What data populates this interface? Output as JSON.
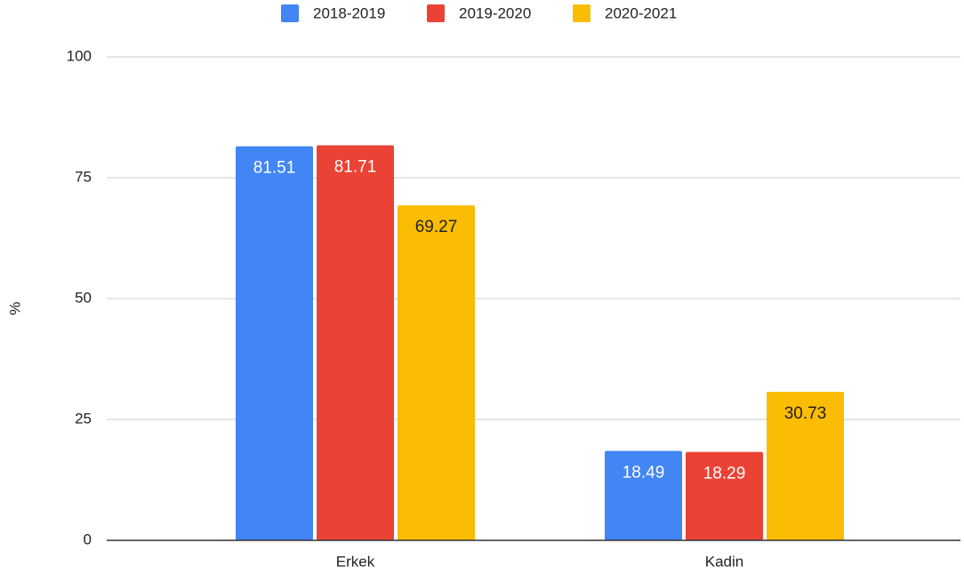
{
  "chart_data": {
    "type": "bar",
    "y_label": "%",
    "categories": [
      "Erkek",
      "Kadin"
    ],
    "series": [
      {
        "name": "2018-2019",
        "color": "#4285f4",
        "values": [
          81.51,
          18.49
        ]
      },
      {
        "name": "2019-2020",
        "color": "#ea4335",
        "values": [
          81.71,
          18.29
        ]
      },
      {
        "name": "2020-2021",
        "color": "#fbbc04",
        "values": [
          69.27,
          30.73
        ]
      }
    ],
    "ylim": [
      0,
      100
    ],
    "yticks": [
      0,
      25,
      50,
      75,
      100
    ],
    "grid": true,
    "legend": "top"
  }
}
